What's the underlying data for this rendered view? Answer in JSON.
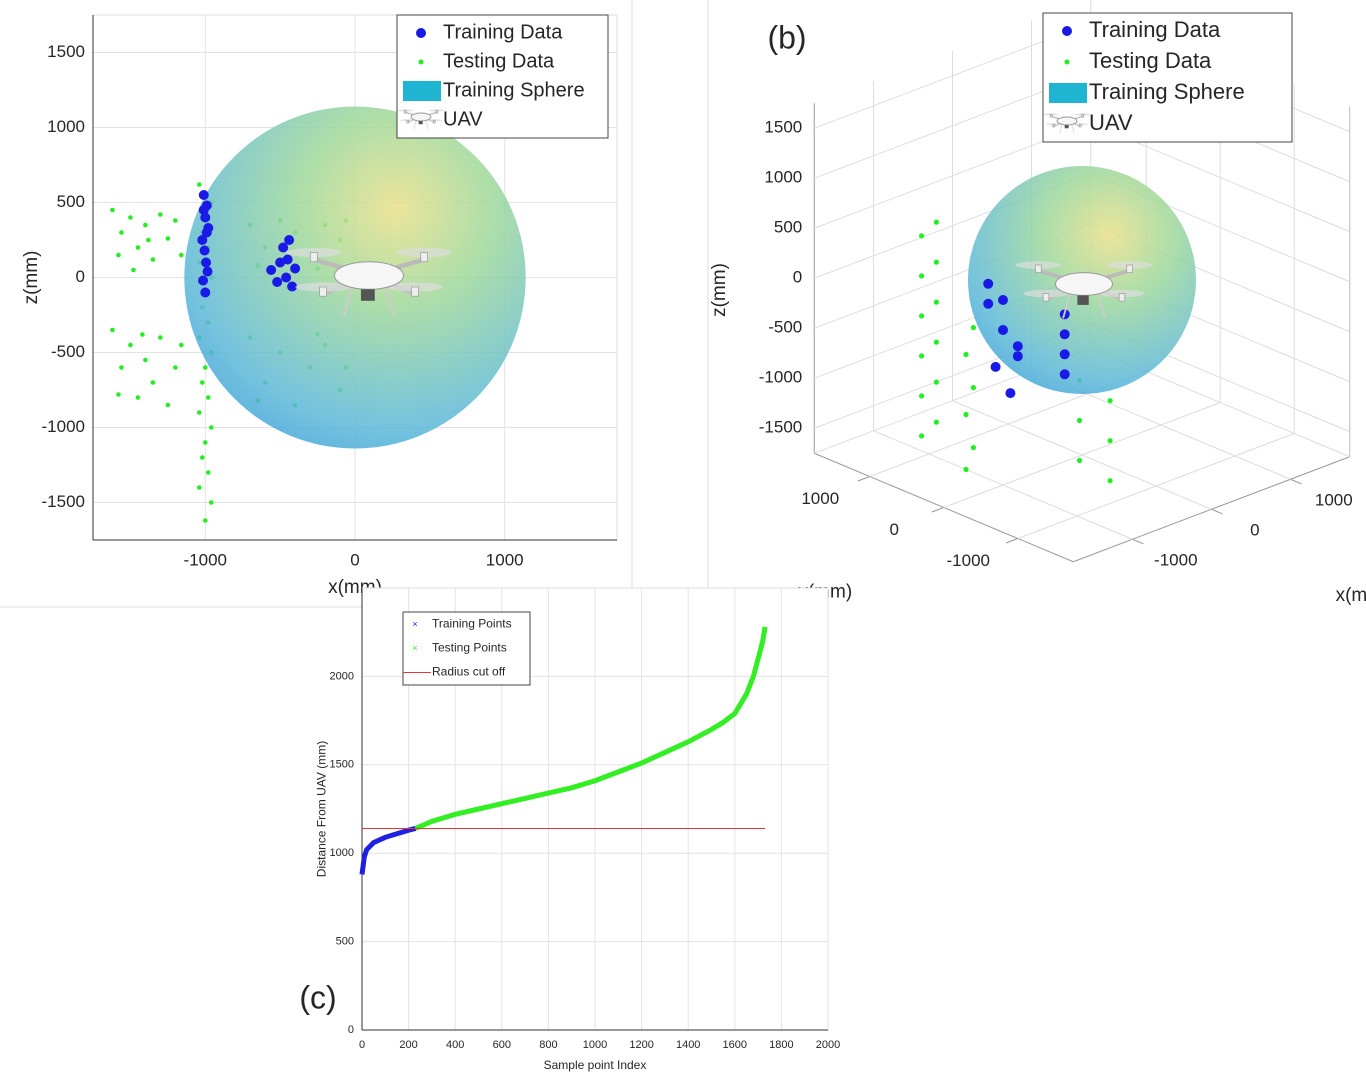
{
  "chart_data": [
    {
      "type": "scatter",
      "xlabel": "x(mm)",
      "ylabel": "z(mm)",
      "xlim": [
        -1750,
        1750
      ],
      "ylim": [
        -1750,
        1750
      ],
      "xticks": [
        -1000,
        0,
        1000
      ],
      "yticks": [
        -1500,
        -1000,
        -500,
        0,
        500,
        1000,
        1500
      ],
      "grid": true,
      "legend": "upper right",
      "series": [
        {
          "name": "Testing Data",
          "color": "#22ee22",
          "marker": "dot",
          "x": [
            -1620,
            -1560,
            -1500,
            -1450,
            -1400,
            -1350,
            -1300,
            -1250,
            -1200,
            -1160,
            -1580,
            -1480,
            -1380,
            -1620,
            -1560,
            -1500,
            -1450,
            -1400,
            -1350,
            -1300,
            -1250,
            -1200,
            -1160,
            -1580,
            -1420,
            -1040,
            -960,
            -1000,
            -1020,
            -980,
            -1040,
            -960,
            -1000,
            -1020,
            -980,
            -1040,
            -960,
            -1000,
            -1020,
            -980,
            -1040,
            -960,
            -1000,
            -1020,
            -980,
            -1040,
            -960,
            -1000,
            -700,
            -600,
            -500,
            -400,
            -300,
            -200,
            -100,
            -650,
            -250,
            -60,
            -700,
            -600,
            -500,
            -400,
            -300,
            -200,
            -100,
            -650,
            -250,
            -60
          ],
          "y": [
            450,
            300,
            400,
            200,
            350,
            120,
            420,
            260,
            380,
            150,
            150,
            50,
            250,
            -350,
            -600,
            -450,
            -800,
            -550,
            -700,
            -400,
            -850,
            -600,
            -450,
            -780,
            -380,
            620,
            500,
            400,
            300,
            200,
            100,
            0,
            -100,
            -200,
            -300,
            -400,
            -500,
            -600,
            -700,
            -800,
            -900,
            -1000,
            -1100,
            -1200,
            -1300,
            -1400,
            -1500,
            -1620,
            350,
            200,
            380,
            300,
            150,
            350,
            250,
            80,
            60,
            380,
            -400,
            -700,
            -500,
            -850,
            -600,
            -450,
            -750,
            -820,
            -380,
            -600
          ]
        },
        {
          "name": "Training Sphere",
          "color": "#1eb4d2",
          "marker": "sphere",
          "x": [
            0
          ],
          "y": [
            0
          ],
          "radius": 1140
        },
        {
          "name": "Training Data",
          "color": "#1a1ae6",
          "marker": "dot",
          "x": [
            -1010,
            -990,
            -1000,
            -980,
            -1020,
            -1005,
            -995,
            -985,
            -1015,
            -1000,
            -1010,
            -990,
            -560,
            -520,
            -480,
            -450,
            -420,
            -500,
            -460,
            -440,
            -400
          ],
          "y": [
            550,
            480,
            400,
            330,
            250,
            180,
            100,
            40,
            -20,
            -100,
            450,
            300,
            50,
            -30,
            200,
            120,
            -60,
            100,
            0,
            250,
            60
          ]
        },
        {
          "name": "UAV",
          "marker": "uav",
          "x": [
            0
          ],
          "y": [
            0
          ]
        }
      ]
    },
    {
      "type": "scatter3d",
      "label": "(b)",
      "xlabel": "x(mm)",
      "ylabel": "y(mm)",
      "zlabel": "z(mm)",
      "xlim": [
        -1750,
        1750
      ],
      "ylim": [
        -1750,
        1750
      ],
      "zlim": [
        -1750,
        1750
      ],
      "xticks": [
        -1000,
        0,
        1000
      ],
      "yticks": [
        -1000,
        0,
        1000
      ],
      "zticks": [
        -1500,
        -1000,
        -500,
        0,
        500,
        1000,
        1500
      ],
      "grid": true,
      "legend": "upper right",
      "series": [
        {
          "name": "Testing Data",
          "color": "#22ee22",
          "marker": "dot",
          "x": [
            -1000,
            -1000,
            -1000,
            -1000,
            -1000,
            -1000,
            -1000,
            -1000,
            -1000,
            -1000,
            -1000,
            -1000,
            -1000,
            -1000,
            -1000,
            -1000,
            -1000,
            -1000,
            -500,
            -300,
            -500,
            -300,
            -500,
            -300
          ],
          "y": [
            900,
            1100,
            900,
            1100,
            900,
            1100,
            900,
            1100,
            900,
            1100,
            900,
            1100,
            400,
            500,
            400,
            500,
            400,
            500,
            -500,
            -700,
            -500,
            -700,
            -500,
            -700
          ],
          "z": [
            600,
            400,
            200,
            0,
            -200,
            -400,
            -600,
            -800,
            -1000,
            -1200,
            -1400,
            -1600,
            -300,
            -600,
            -900,
            -1200,
            -1500,
            -1750,
            -700,
            -900,
            -1100,
            -1300,
            -1500,
            -1700
          ]
        },
        {
          "name": "Training Sphere",
          "color": "#1eb4d2",
          "marker": "sphere",
          "x": [
            0
          ],
          "y": [
            0
          ],
          "z": [
            0
          ],
          "radius": 1140
        },
        {
          "name": "Training Data",
          "color": "#1a1ae6",
          "marker": "dot",
          "x": [
            -1000,
            -1000,
            -1000,
            -1000,
            -1000,
            -1000,
            -1000,
            -1000,
            -500,
            -500,
            -500,
            -500
          ],
          "y": [
            200,
            0,
            -200,
            100,
            -100,
            200,
            0,
            -200,
            -300,
            -300,
            -300,
            -300
          ],
          "z": [
            0,
            -200,
            -400,
            -600,
            -800,
            200,
            100,
            -300,
            -100,
            -300,
            -500,
            -700
          ]
        },
        {
          "name": "UAV",
          "marker": "uav",
          "x": [
            0
          ],
          "y": [
            0
          ],
          "z": [
            0
          ]
        }
      ]
    },
    {
      "type": "line",
      "label": "(c)",
      "xlabel": "Sample point Index",
      "ylabel": "Distance From UAV (mm)",
      "xlim": [
        0,
        2000
      ],
      "ylim": [
        0,
        2500
      ],
      "xticks": [
        0,
        200,
        400,
        600,
        800,
        1000,
        1200,
        1400,
        1600,
        1800,
        2000
      ],
      "yticks": [
        0,
        500,
        1000,
        1500,
        2000
      ],
      "grid": true,
      "legend": "upper left",
      "series": [
        {
          "name": "Training Points",
          "color": "#2020e0",
          "marker": "x",
          "x": [
            0,
            10,
            20,
            50,
            100,
            150,
            200,
            230
          ],
          "values": [
            880,
            980,
            1020,
            1060,
            1090,
            1110,
            1130,
            1140
          ]
        },
        {
          "name": "Testing Points",
          "color": "#33ee22",
          "marker": "x",
          "x": [
            230,
            300,
            400,
            500,
            600,
            700,
            800,
            900,
            1000,
            1100,
            1200,
            1300,
            1400,
            1500,
            1550,
            1600,
            1650,
            1680,
            1700,
            1720,
            1730
          ],
          "values": [
            1140,
            1180,
            1220,
            1250,
            1280,
            1310,
            1340,
            1370,
            1410,
            1460,
            1510,
            1570,
            1630,
            1700,
            1740,
            1790,
            1900,
            2000,
            2100,
            2200,
            2280
          ]
        },
        {
          "name": "Radius cut off",
          "color": "#ee3333",
          "marker": "line",
          "x": [
            0,
            1730
          ],
          "values": [
            1140,
            1140
          ]
        }
      ]
    }
  ]
}
